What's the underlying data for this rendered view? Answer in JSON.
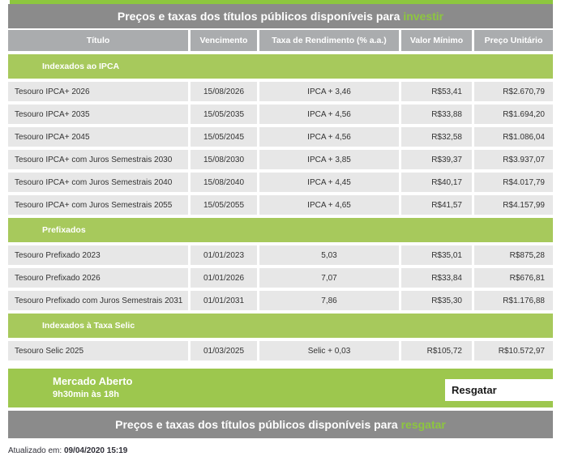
{
  "colors": {
    "green": "#8dc63f",
    "section_green": "#a7c95c",
    "market_green": "#9dc74e",
    "bar_gray": "#8b8b8b",
    "header_gray": "#aaacae",
    "row_gray": "#e7e7e7",
    "text_dark": "#333333"
  },
  "page": {
    "invest_title_prefix": "Preços e taxas dos títulos públicos disponíveis para",
    "invest_title_highlight": "investir",
    "redeem_title_prefix": "Preços e taxas dos títulos públicos disponíveis para",
    "redeem_title_highlight": "resgatar"
  },
  "table": {
    "columns": [
      "Título",
      "Vencimento",
      "Taxa de Rendimento (% a.a.)",
      "Valor Mínimo",
      "Preço Unitário"
    ],
    "sections": [
      {
        "label": "Indexados ao IPCA",
        "rows": [
          [
            "Tesouro IPCA+ 2026",
            "15/08/2026",
            "IPCA + 3,46",
            "R$53,41",
            "R$2.670,79"
          ],
          [
            "Tesouro IPCA+ 2035",
            "15/05/2035",
            "IPCA + 4,56",
            "R$33,88",
            "R$1.694,20"
          ],
          [
            "Tesouro IPCA+ 2045",
            "15/05/2045",
            "IPCA + 4,56",
            "R$32,58",
            "R$1.086,04"
          ],
          [
            "Tesouro IPCA+ com Juros Semestrais 2030",
            "15/08/2030",
            "IPCA + 3,85",
            "R$39,37",
            "R$3.937,07"
          ],
          [
            "Tesouro IPCA+ com Juros Semestrais 2040",
            "15/08/2040",
            "IPCA + 4,45",
            "R$40,17",
            "R$4.017,79"
          ],
          [
            "Tesouro IPCA+ com Juros Semestrais 2055",
            "15/05/2055",
            "IPCA + 4,65",
            "R$41,57",
            "R$4.157,99"
          ]
        ]
      },
      {
        "label": "Prefixados",
        "rows": [
          [
            "Tesouro Prefixado 2023",
            "01/01/2023",
            "5,03",
            "R$35,01",
            "R$875,28"
          ],
          [
            "Tesouro Prefixado 2026",
            "01/01/2026",
            "7,07",
            "R$33,84",
            "R$676,81"
          ],
          [
            "Tesouro Prefixado com Juros Semestrais 2031",
            "01/01/2031",
            "7,86",
            "R$35,30",
            "R$1.176,88"
          ]
        ]
      },
      {
        "label": "Indexados à Taxa Selic",
        "rows": [
          [
            "Tesouro Selic 2025",
            "01/03/2025",
            "Selic + 0,03",
            "R$105,72",
            "R$10.572,97"
          ]
        ]
      }
    ]
  },
  "market": {
    "status": "Mercado Aberto",
    "hours": "9h30min às 18h",
    "redeem_button_label": "Resgatar"
  },
  "updated": {
    "label": "Atualizado em:",
    "value": "09/04/2020 15:19"
  }
}
